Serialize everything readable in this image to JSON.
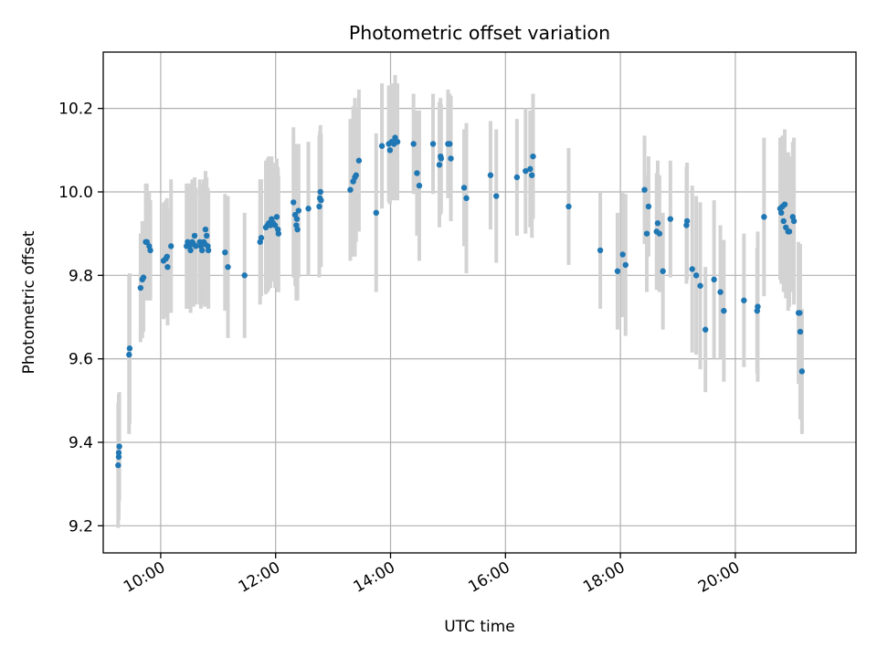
{
  "chart_data": {
    "type": "scatter",
    "title": "Photometric offset variation",
    "xlabel": "UTC time",
    "ylabel": "Photometric offset",
    "grid": true,
    "x_unit": "hours UTC",
    "xlim": [
      9.0,
      22.1
    ],
    "ylim": [
      9.135,
      10.335
    ],
    "x_ticks": [
      {
        "value": 10,
        "label": "10:00"
      },
      {
        "value": 12,
        "label": "12:00"
      },
      {
        "value": 14,
        "label": "14:00"
      },
      {
        "value": 16,
        "label": "16:00"
      },
      {
        "value": 18,
        "label": "18:00"
      },
      {
        "value": 20,
        "label": "20:00"
      }
    ],
    "y_ticks": [
      {
        "value": 9.2,
        "label": "9.2"
      },
      {
        "value": 9.4,
        "label": "9.4"
      },
      {
        "value": 9.6,
        "label": "9.6"
      },
      {
        "value": 9.8,
        "label": "9.8"
      },
      {
        "value": 10.0,
        "label": "10.0"
      },
      {
        "value": 10.2,
        "label": "10.2"
      }
    ],
    "colors": {
      "marker": "#1f77b4",
      "errorbar": "#d3d3d3"
    },
    "series": [
      {
        "name": "offset",
        "points": [
          [
            9.26,
            9.345,
            0.15
          ],
          [
            9.27,
            9.365,
            0.15
          ],
          [
            9.27,
            9.375,
            0.14
          ],
          [
            9.28,
            9.39,
            0.13
          ],
          [
            9.45,
            9.61,
            0.19
          ],
          [
            9.46,
            9.625,
            0.18
          ],
          [
            9.65,
            9.77,
            0.13
          ],
          [
            9.68,
            9.79,
            0.14
          ],
          [
            9.7,
            9.795,
            0.13
          ],
          [
            9.74,
            9.88,
            0.14
          ],
          [
            9.76,
            9.88,
            0.14
          ],
          [
            9.8,
            9.87,
            0.13
          ],
          [
            9.82,
            9.86,
            0.12
          ],
          [
            10.05,
            9.835,
            0.14
          ],
          [
            10.09,
            9.84,
            0.14
          ],
          [
            10.11,
            9.845,
            0.14
          ],
          [
            10.12,
            9.82,
            0.14
          ],
          [
            10.18,
            9.87,
            0.16
          ],
          [
            10.45,
            9.87,
            0.15
          ],
          [
            10.47,
            9.88,
            0.14
          ],
          [
            10.5,
            9.87,
            0.15
          ],
          [
            10.52,
            9.86,
            0.15
          ],
          [
            10.55,
            9.88,
            0.15
          ],
          [
            10.57,
            9.875,
            0.15
          ],
          [
            10.59,
            9.895,
            0.14
          ],
          [
            10.61,
            9.87,
            0.14
          ],
          [
            10.68,
            9.88,
            0.15
          ],
          [
            10.7,
            9.87,
            0.15
          ],
          [
            10.72,
            9.86,
            0.13
          ],
          [
            10.75,
            9.88,
            0.15
          ],
          [
            10.77,
            9.875,
            0.15
          ],
          [
            10.78,
            9.91,
            0.14
          ],
          [
            10.8,
            9.895,
            0.14
          ],
          [
            10.82,
            9.87,
            0.14
          ],
          [
            10.83,
            9.86,
            0.14
          ],
          [
            11.12,
            9.855,
            0.14
          ],
          [
            11.17,
            9.82,
            0.17
          ],
          [
            11.46,
            9.8,
            0.15
          ],
          [
            11.73,
            9.88,
            0.15
          ],
          [
            11.75,
            9.89,
            0.14
          ],
          [
            11.83,
            9.915,
            0.16
          ],
          [
            11.86,
            9.92,
            0.16
          ],
          [
            11.88,
            9.925,
            0.16
          ],
          [
            11.91,
            9.92,
            0.15
          ],
          [
            11.93,
            9.935,
            0.15
          ],
          [
            11.96,
            9.925,
            0.14
          ],
          [
            11.99,
            9.92,
            0.15
          ],
          [
            12.02,
            9.94,
            0.14
          ],
          [
            12.04,
            9.91,
            0.15
          ],
          [
            12.05,
            9.9,
            0.14
          ],
          [
            12.31,
            9.975,
            0.18
          ],
          [
            12.34,
            9.945,
            0.17
          ],
          [
            12.36,
            9.92,
            0.18
          ],
          [
            12.37,
            9.935,
            0.17
          ],
          [
            12.38,
            9.91,
            0.17
          ],
          [
            12.4,
            9.955,
            0.16
          ],
          [
            12.57,
            9.96,
            0.16
          ],
          [
            12.76,
            9.965,
            0.17
          ],
          [
            12.77,
            9.985,
            0.16
          ],
          [
            12.78,
            10.0,
            0.16
          ],
          [
            12.79,
            9.98,
            0.16
          ],
          [
            13.3,
            10.005,
            0.17
          ],
          [
            13.35,
            10.025,
            0.18
          ],
          [
            13.38,
            10.035,
            0.19
          ],
          [
            13.4,
            10.04,
            0.16
          ],
          [
            13.45,
            10.075,
            0.17
          ],
          [
            13.75,
            9.95,
            0.19
          ],
          [
            13.85,
            10.11,
            0.15
          ],
          [
            13.97,
            10.115,
            0.14
          ],
          [
            13.99,
            10.1,
            0.13
          ],
          [
            14.02,
            10.12,
            0.14
          ],
          [
            14.06,
            10.115,
            0.13
          ],
          [
            14.08,
            10.13,
            0.15
          ],
          [
            14.12,
            10.12,
            0.14
          ],
          [
            14.4,
            10.115,
            0.12
          ],
          [
            14.46,
            10.045,
            0.15
          ],
          [
            14.5,
            10.015,
            0.18
          ],
          [
            14.74,
            10.115,
            0.12
          ],
          [
            14.85,
            10.065,
            0.15
          ],
          [
            14.87,
            10.085,
            0.14
          ],
          [
            14.88,
            10.08,
            0.13
          ],
          [
            15.0,
            10.115,
            0.13
          ],
          [
            15.03,
            10.115,
            0.12
          ],
          [
            15.05,
            10.08,
            0.15
          ],
          [
            15.28,
            10.01,
            0.14
          ],
          [
            15.32,
            9.985,
            0.18
          ],
          [
            15.74,
            10.04,
            0.13
          ],
          [
            15.84,
            9.99,
            0.16
          ],
          [
            16.2,
            10.035,
            0.14
          ],
          [
            16.35,
            10.05,
            0.15
          ],
          [
            16.43,
            10.055,
            0.14
          ],
          [
            16.46,
            10.04,
            0.15
          ],
          [
            16.48,
            10.085,
            0.15
          ],
          [
            17.1,
            9.965,
            0.14
          ],
          [
            17.65,
            9.86,
            0.14
          ],
          [
            17.95,
            9.81,
            0.14
          ],
          [
            18.04,
            9.85,
            0.15
          ],
          [
            18.09,
            9.825,
            0.17
          ],
          [
            18.42,
            10.005,
            0.13
          ],
          [
            18.46,
            9.9,
            0.14
          ],
          [
            18.49,
            9.965,
            0.12
          ],
          [
            18.63,
            9.905,
            0.14
          ],
          [
            18.65,
            9.925,
            0.15
          ],
          [
            18.68,
            9.9,
            0.14
          ],
          [
            18.74,
            9.81,
            0.14
          ],
          [
            18.87,
            9.935,
            0.14
          ],
          [
            19.15,
            9.92,
            0.14
          ],
          [
            19.16,
            9.93,
            0.14
          ],
          [
            19.25,
            9.815,
            0.2
          ],
          [
            19.32,
            9.8,
            0.19
          ],
          [
            19.39,
            9.775,
            0.2
          ],
          [
            19.48,
            9.67,
            0.15
          ],
          [
            19.63,
            9.79,
            0.19
          ],
          [
            19.74,
            9.76,
            0.16
          ],
          [
            19.8,
            9.715,
            0.17
          ],
          [
            20.15,
            9.74,
            0.16
          ],
          [
            20.38,
            9.715,
            0.15
          ],
          [
            20.39,
            9.725,
            0.18
          ],
          [
            20.5,
            9.94,
            0.19
          ],
          [
            20.78,
            9.96,
            0.17
          ],
          [
            20.8,
            9.95,
            0.17
          ],
          [
            20.82,
            9.965,
            0.17
          ],
          [
            20.84,
            9.93,
            0.17
          ],
          [
            20.86,
            9.97,
            0.18
          ],
          [
            20.88,
            9.915,
            0.17
          ],
          [
            20.92,
            9.905,
            0.19
          ],
          [
            20.94,
            9.905,
            0.18
          ],
          [
            21.0,
            9.94,
            0.18
          ],
          [
            21.02,
            9.93,
            0.2
          ],
          [
            21.1,
            9.71,
            0.17
          ],
          [
            21.12,
            9.71,
            0.16
          ],
          [
            21.13,
            9.665,
            0.21
          ],
          [
            21.16,
            9.57,
            0.15
          ]
        ]
      }
    ]
  }
}
